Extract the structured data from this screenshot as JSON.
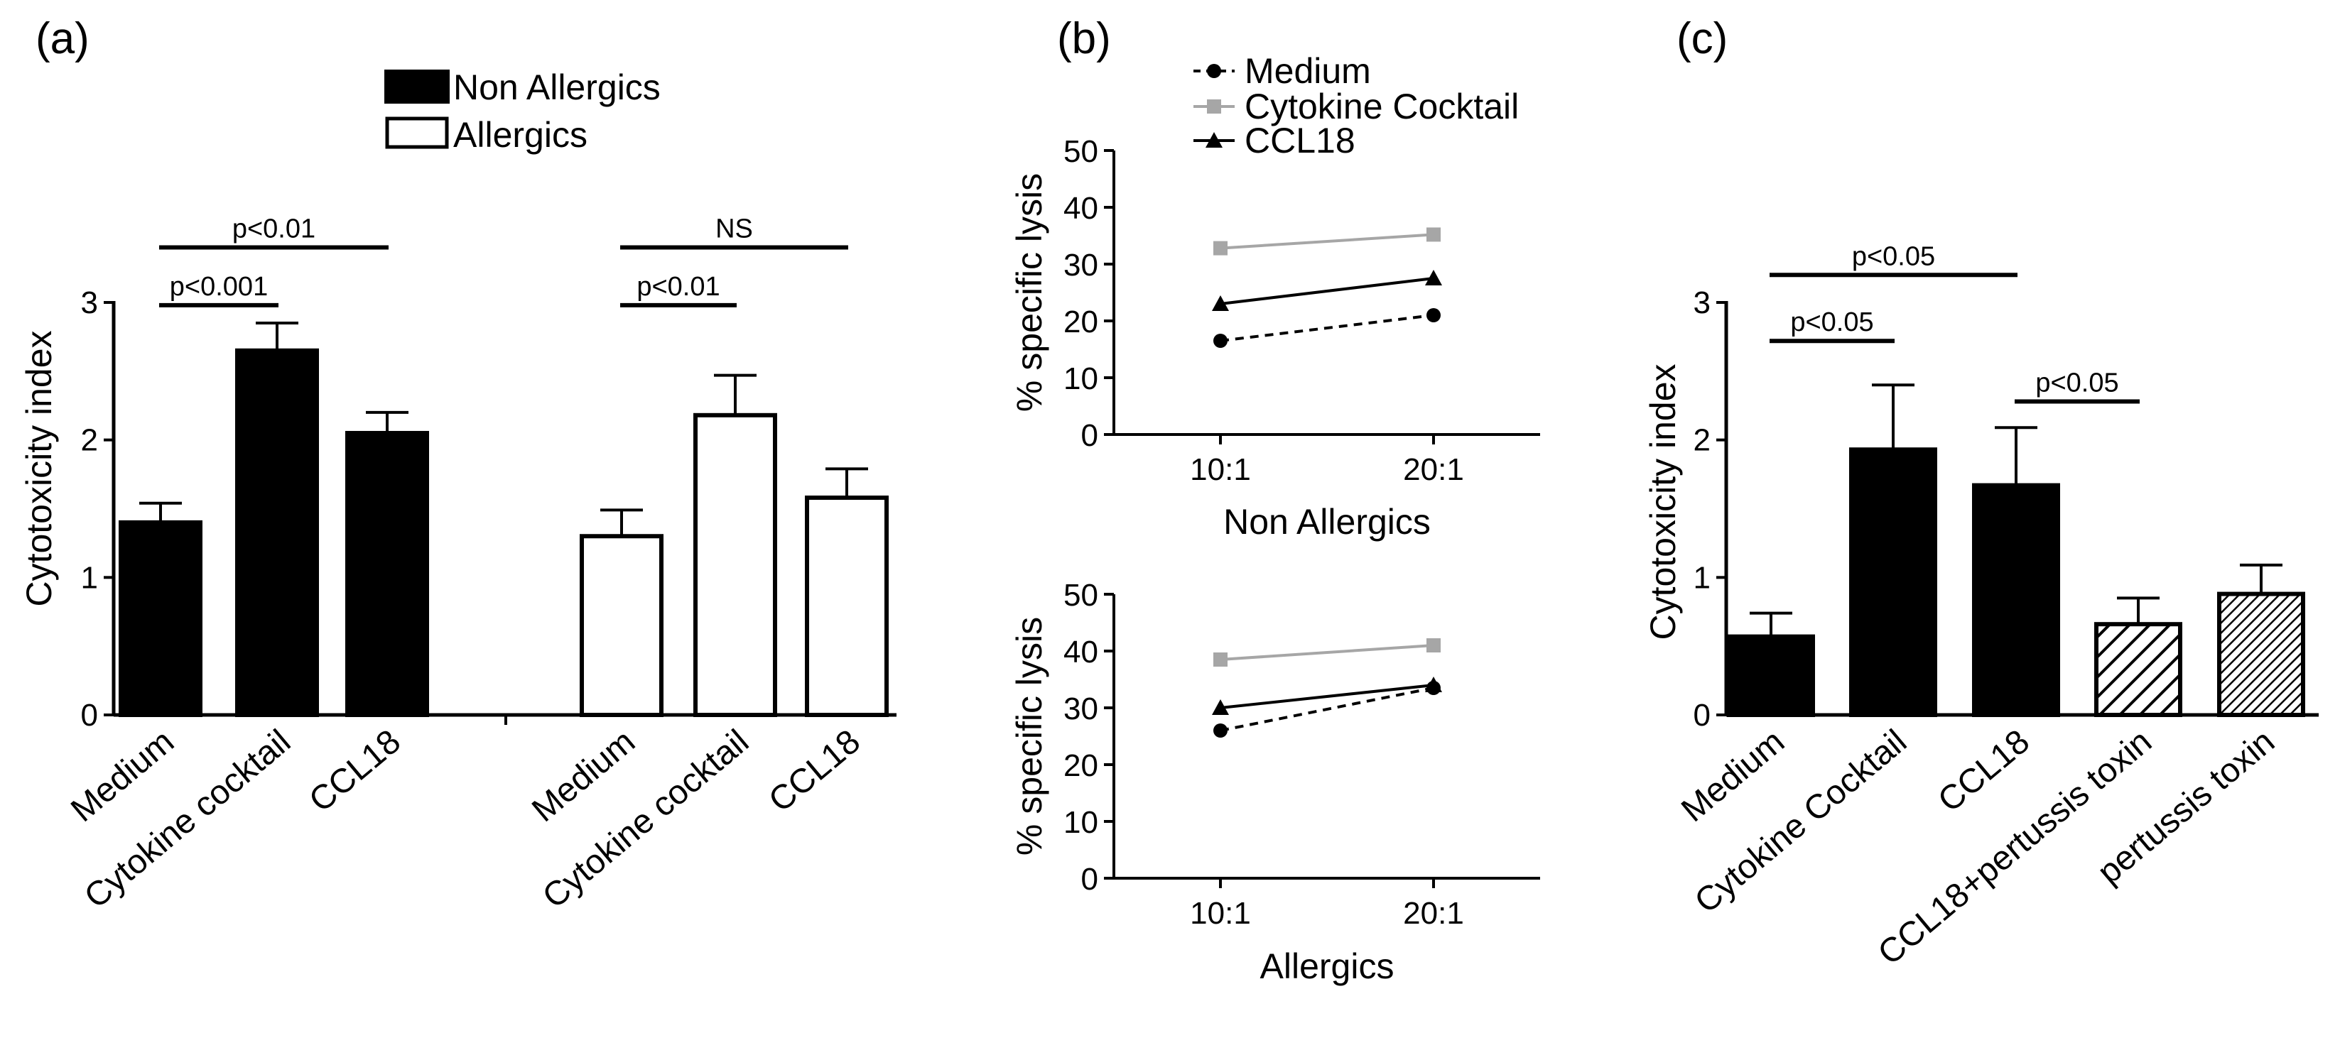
{
  "figure": {
    "panel_labels": [
      "(a)",
      "(b)",
      "(c)"
    ]
  },
  "chart_data": [
    {
      "id": "a",
      "type": "bar",
      "panel_label": "(a)",
      "ylabel": "Cytotoxicity index",
      "ylim": [
        0,
        3
      ],
      "yticks": [
        "0",
        "1",
        "2",
        "3"
      ],
      "legend": [
        {
          "name": "Non Allergics",
          "fill": "#000000"
        },
        {
          "name": "Allergics",
          "fill": "#ffffff"
        }
      ],
      "groups": [
        {
          "name": "Non Allergics",
          "fill": "#000000",
          "categories": [
            "Medium",
            "Cytokine cocktail",
            "CCL18"
          ],
          "values": [
            1.4,
            2.65,
            2.05
          ],
          "errors": [
            0.14,
            0.2,
            0.15
          ]
        },
        {
          "name": "Allergics",
          "fill": "#ffffff",
          "categories": [
            "Medium",
            "Cytokine cocktail",
            "CCL18"
          ],
          "values": [
            1.3,
            2.18,
            1.58
          ],
          "errors": [
            0.19,
            0.29,
            0.21
          ]
        }
      ],
      "annotations": [
        {
          "text": "p<0.01",
          "from": [
            0,
            0
          ],
          "to": [
            0,
            2
          ],
          "level": 3.4
        },
        {
          "text": "p<0.001",
          "from": [
            0,
            0
          ],
          "to": [
            0,
            1
          ],
          "level": 2.98
        },
        {
          "text": "NS",
          "from": [
            1,
            0
          ],
          "to": [
            1,
            2
          ],
          "level": 3.4
        },
        {
          "text": "p<0.01",
          "from": [
            1,
            0
          ],
          "to": [
            1,
            1
          ],
          "level": 2.98
        }
      ]
    },
    {
      "id": "b1",
      "type": "line",
      "panel_label": "(b)",
      "xlabel": "Non Allergics",
      "ylabel": "% specific lysis",
      "x": [
        "10:1",
        "20:1"
      ],
      "ylim": [
        0,
        50
      ],
      "yticks": [
        "0",
        "10",
        "20",
        "30",
        "40",
        "50"
      ],
      "legend": [
        "Medium",
        "Cytokine Cocktail",
        "CCL18"
      ],
      "series": [
        {
          "name": "Medium",
          "values": [
            16.5,
            21
          ],
          "color": "#000000",
          "marker": "circle",
          "dash": true
        },
        {
          "name": "Cytokine Cocktail",
          "values": [
            32.8,
            35.2
          ],
          "color": "#a6a6a6",
          "marker": "square",
          "dash": false
        },
        {
          "name": "CCL18",
          "values": [
            23,
            27.5
          ],
          "color": "#000000",
          "marker": "triangle",
          "dash": false
        }
      ]
    },
    {
      "id": "b2",
      "type": "line",
      "xlabel": "Allergics",
      "ylabel": "% specific lysis",
      "x": [
        "10:1",
        "20:1"
      ],
      "ylim": [
        0,
        50
      ],
      "yticks": [
        "0",
        "10",
        "20",
        "30",
        "40",
        "50"
      ],
      "series": [
        {
          "name": "Medium",
          "values": [
            26,
            33.5
          ],
          "color": "#000000",
          "marker": "circle",
          "dash": true
        },
        {
          "name": "Cytokine Cocktail",
          "values": [
            38.5,
            41
          ],
          "color": "#a6a6a6",
          "marker": "square",
          "dash": false
        },
        {
          "name": "CCL18",
          "values": [
            30,
            34
          ],
          "color": "#000000",
          "marker": "triangle",
          "dash": false
        }
      ]
    },
    {
      "id": "c",
      "type": "bar",
      "panel_label": "(c)",
      "ylabel": "Cytotoxicity index",
      "ylim": [
        0,
        3
      ],
      "yticks": [
        "0",
        "1",
        "2",
        "3"
      ],
      "categories": [
        "Medium",
        "Cytokine Cocktail",
        "CCL18",
        "CCL18+pertussis toxin",
        "pertussis toxin"
      ],
      "values": [
        0.57,
        1.93,
        1.67,
        0.66,
        0.88
      ],
      "errors": [
        0.17,
        0.47,
        0.42,
        0.19,
        0.21
      ],
      "fills": [
        "solid",
        "solid",
        "solid",
        "hatch-wide",
        "hatch-dense"
      ],
      "annotations": [
        {
          "text": "p<0.05",
          "from": 0,
          "to": 2,
          "level": 3.2
        },
        {
          "text": "p<0.05",
          "from": 0,
          "to": 1,
          "level": 2.72
        },
        {
          "text": "p<0.05",
          "from": 2,
          "to": 3,
          "level": 2.28
        }
      ]
    }
  ]
}
